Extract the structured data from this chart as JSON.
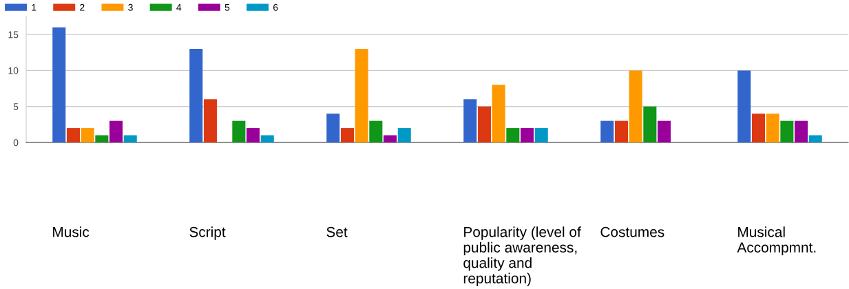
{
  "chart_data": {
    "type": "bar",
    "categories": [
      "Music",
      "Script",
      "Set",
      "Popularity (level of public awareness, quality and reputation)",
      "Costumes",
      "Musical Accompmnt."
    ],
    "series": [
      {
        "name": "1",
        "color": "#3366cc",
        "values": [
          16,
          13,
          4,
          6,
          3,
          10
        ]
      },
      {
        "name": "2",
        "color": "#dc3912",
        "values": [
          2,
          6,
          2,
          5,
          3,
          4
        ]
      },
      {
        "name": "3",
        "color": "#ff9900",
        "values": [
          2,
          0,
          13,
          8,
          10,
          4
        ]
      },
      {
        "name": "4",
        "color": "#109618",
        "values": [
          1,
          3,
          3,
          2,
          5,
          3
        ]
      },
      {
        "name": "5",
        "color": "#990099",
        "values": [
          3,
          2,
          1,
          2,
          3,
          3
        ]
      },
      {
        "name": "6",
        "color": "#0099c6",
        "values": [
          1,
          1,
          2,
          2,
          0,
          1
        ]
      }
    ],
    "ylim": [
      0,
      17.5
    ],
    "yticks": [
      0,
      5,
      10,
      15
    ],
    "grid": "y",
    "legend": "top left"
  }
}
